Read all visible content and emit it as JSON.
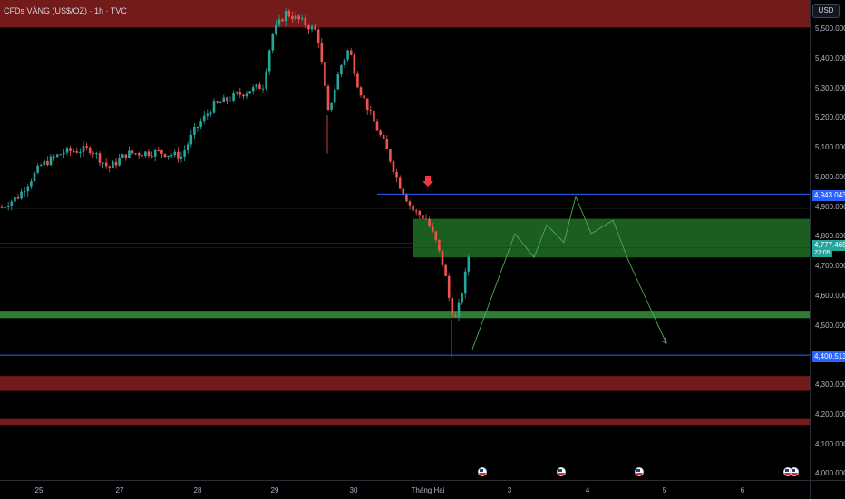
{
  "header": {
    "title": "CFDs VÀNG (US$/OZ) · 1h · TVC",
    "currency_button": "USD"
  },
  "price_axis": {
    "ticks": [
      "5,500.000",
      "5,400.000",
      "5,300.000",
      "5,200.000",
      "5,100.000",
      "5,000.000",
      "4,900.000",
      "4,800.000",
      "4,700.000",
      "4,600.000",
      "4,500.000",
      "4,300.000",
      "4,200.000",
      "4,100.000",
      "4,000.000"
    ],
    "tags": {
      "upper_line": "4,943.043",
      "current_price": "4,777.465",
      "countdown": "22:05",
      "lower_line": "4,400.513"
    }
  },
  "time_axis": {
    "labels": [
      "25",
      "27",
      "28",
      "29",
      "30",
      "Tháng Hai",
      "3",
      "4",
      "5",
      "6"
    ]
  },
  "colors": {
    "up_candle": "#26a69a",
    "down_candle": "#ef5350",
    "red_zone": "#7f1d1d",
    "green_zone": "#1b5e20",
    "green_band": "#2e7d32",
    "horizontal_line": "#2962ff",
    "projection": "#4caf50",
    "marker_arrow": "#f23645"
  },
  "chart_data": {
    "type": "candlestick",
    "title": "CFDs VÀNG (US$/OZ) · 1h · TVC",
    "price_range": [
      3980,
      5590
    ],
    "x_sessions": [
      "25",
      "27",
      "28",
      "29",
      "30",
      "Tháng Hai",
      "3",
      "4",
      "5",
      "6"
    ],
    "horizontal_levels": [
      {
        "value": 4943.043,
        "label": "4,943.043",
        "kind": "resistance-line"
      },
      {
        "value": 4400.513,
        "label": "4,400.513",
        "kind": "support-line"
      }
    ],
    "zones": [
      {
        "from": 5505,
        "to": 5600,
        "kind": "supply-red"
      },
      {
        "from": 4730,
        "to": 4860,
        "kind": "demand-green"
      },
      {
        "from": 4525,
        "to": 4550,
        "kind": "demand-green-band"
      },
      {
        "from": 4280,
        "to": 4330,
        "kind": "supply-red"
      },
      {
        "from": 4165,
        "to": 4185,
        "kind": "supply-red"
      }
    ],
    "last_price": 4777.465,
    "countdown": "22:05",
    "projection_path": [
      4420,
      4810,
      4730,
      4840,
      4780,
      4935,
      4810,
      4855,
      4720,
      4440
    ]
  },
  "events": {
    "flags": [
      "us-flag-icon",
      "us-flag-icon",
      "us-flag-icon",
      "us-flag-icon",
      "us-flag-icon"
    ]
  }
}
